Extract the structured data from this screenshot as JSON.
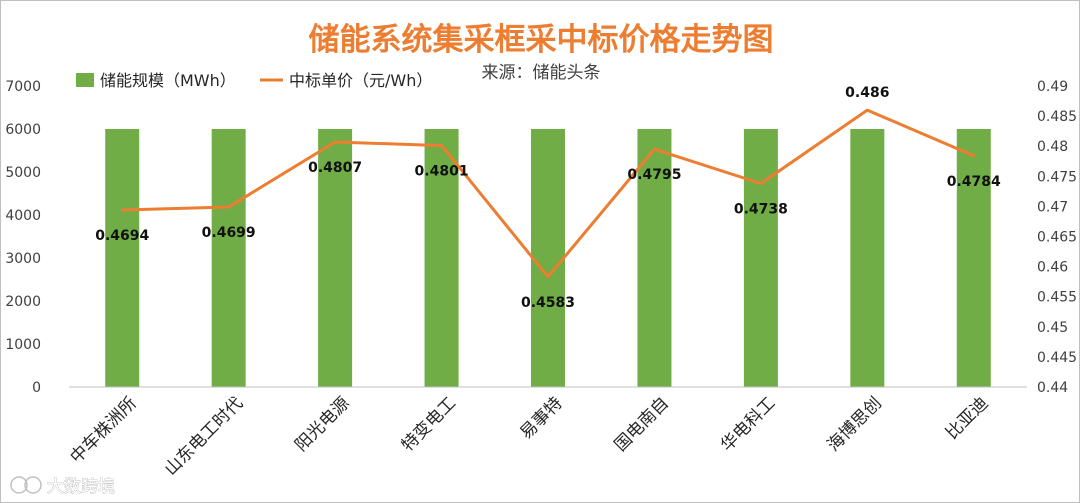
{
  "chart_data": {
    "type": "bar",
    "title": "储能系统集采框采中标价格走势图",
    "subtitle": "来源：储能头条",
    "categories": [
      "中车株洲所",
      "山东电工时代",
      "阳光电源",
      "特变电工",
      "易事特",
      "国电南自",
      "华电科工",
      "海博思创",
      "比亚迪"
    ],
    "series": [
      {
        "name": "储能规模（MWh）",
        "type": "bar",
        "axis": "left",
        "color": "#70ad47",
        "values": [
          6000,
          6000,
          6000,
          6000,
          6000,
          6000,
          6000,
          6000,
          6000
        ]
      },
      {
        "name": "中标单价（元/Wh）",
        "type": "line",
        "axis": "right",
        "color": "#ed7d31",
        "values": [
          0.4694,
          0.4699,
          0.4807,
          0.4801,
          0.4583,
          0.4795,
          0.4738,
          0.486,
          0.4784
        ],
        "labels": [
          "0.4694",
          "0.4699",
          "0.4807",
          "0.4801",
          "0.4583",
          "0.4795",
          "0.4738",
          "0.486",
          "0.4784"
        ]
      }
    ],
    "y_left": {
      "min": 0,
      "max": 7000,
      "ticks": [
        "0",
        "1000",
        "2000",
        "3000",
        "4000",
        "5000",
        "6000",
        "7000"
      ]
    },
    "y_right": {
      "min": 0.44,
      "max": 0.49,
      "ticks": [
        "0.44",
        "0.445",
        "0.45",
        "0.455",
        "0.46",
        "0.465",
        "0.47",
        "0.475",
        "0.48",
        "0.485",
        "0.49"
      ]
    },
    "grid": false,
    "legend_position": "top-left"
  },
  "watermark": {
    "text": "大数跨境",
    "icon": "watermark-logo-icon"
  }
}
